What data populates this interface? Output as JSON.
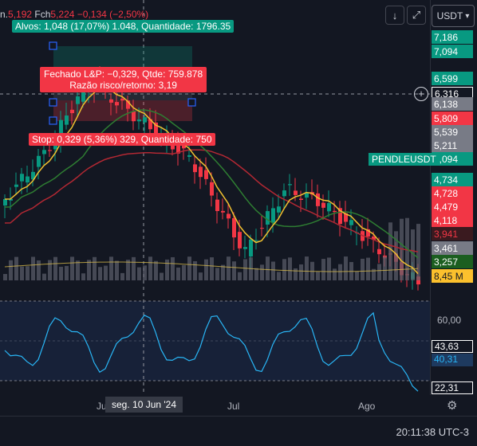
{
  "header": {
    "ohlc_close_label": "n.",
    "ohlc_close_value": "5,192",
    "ohlc_fch_label": "Fch",
    "ohlc_fch_value": "5,224",
    "ohlc_change": "−0,134 (−2,50%)"
  },
  "toolbar": {
    "currency": "USDT",
    "currency_icon": "chevron-down-icon"
  },
  "annotations": {
    "targets": "Alvos: 1,048 (17,07%) 1.048, Quantidade: 1796.35",
    "closed_line1": "Fechado L&P: −0,329, Qtde: 759.878",
    "closed_line2": "Razão risco/retorno: 3,19",
    "stop": "Stop: 0,329 (5,36%) 329, Quantidade: 750"
  },
  "symbol_label": "PENDLEUSDT",
  "price_axis": {
    "labels": [
      {
        "text": "7,186",
        "color": "#089981"
      },
      {
        "text": "7,094",
        "color": "#089981"
      },
      {
        "text": "6,599",
        "color": "#089981"
      },
      {
        "text": "6,316",
        "color": "#131722"
      },
      {
        "text": "6,138",
        "color": "#787b86"
      },
      {
        "text": "5,809",
        "color": "#f23645"
      },
      {
        "text": "5,539",
        "color": "#787b86"
      },
      {
        "text": "5,211",
        "color": "#787b86"
      },
      {
        "text": "5,094",
        "color": "#089981"
      },
      {
        "text": "4,734",
        "color": "#089981"
      },
      {
        "text": "4,728",
        "color": "#f23645"
      },
      {
        "text": "4,479",
        "color": "#f23645"
      },
      {
        "text": "4,118",
        "color": "#f23645"
      },
      {
        "text": "3,941",
        "color": "#f23645"
      },
      {
        "text": "3,461",
        "color": "#787b86"
      },
      {
        "text": "3,257",
        "color": "#1b5e20"
      },
      {
        "text": "8,45 M",
        "color": "#fbc02d"
      }
    ],
    "indicator_labels": [
      "60,00",
      "43,63",
      "40,31",
      "22,31"
    ]
  },
  "time_axis": {
    "labels": [
      "Ju",
      "seg. 10 Jun '24",
      "Jul",
      "Ago"
    ]
  },
  "footer": {
    "clock": "20:11:38 UTC-3"
  },
  "colors": {
    "up": "#089981",
    "down": "#f23645",
    "ma_yellow": "#f0c030",
    "ma_green": "#2e7d32",
    "ma_red": "#b22833",
    "rsi": "#29b6f6"
  }
}
